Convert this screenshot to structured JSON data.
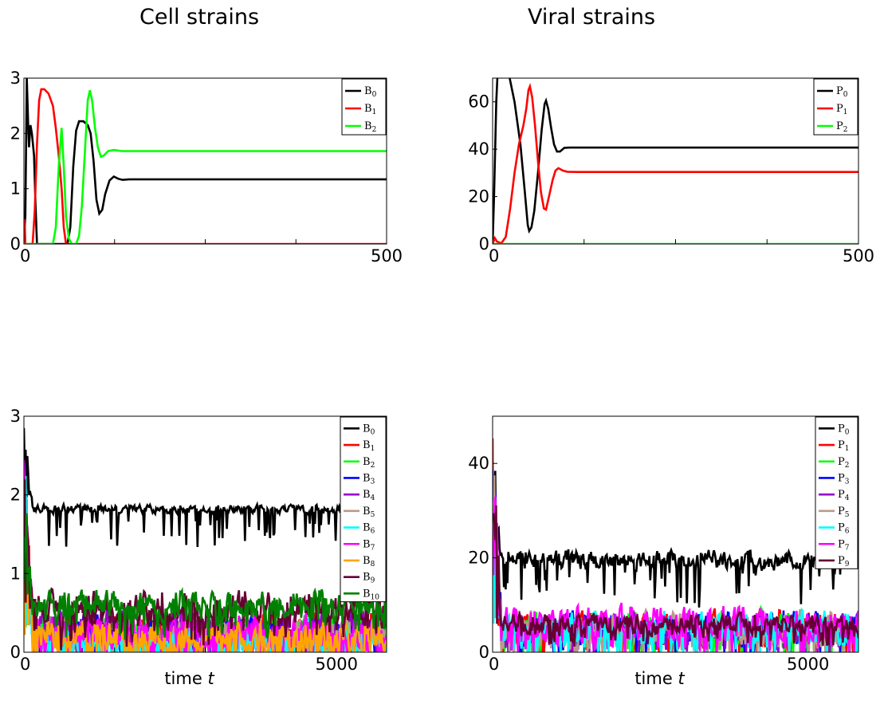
{
  "titles": {
    "left": "Cell strains",
    "right": "Viral strains"
  },
  "chart_data": [
    {
      "id": "cells_short",
      "type": "line",
      "xlim": [
        0,
        500
      ],
      "ylim": [
        0,
        3
      ],
      "xticks": [
        "0",
        "500"
      ],
      "yticks": [
        "0",
        "1",
        "2",
        "3"
      ],
      "xlabel": "",
      "legend_position": "top-right",
      "series": [
        {
          "name": "B",
          "sub": "0",
          "color": "#000000",
          "points": [
            [
              0,
              0
            ],
            [
              2,
              0.5
            ],
            [
              4,
              3
            ],
            [
              6,
              2.1
            ],
            [
              7,
              1.75
            ],
            [
              9,
              2.15
            ],
            [
              11,
              2.0
            ],
            [
              14,
              1.6
            ],
            [
              16,
              0.7
            ],
            [
              18,
              0
            ],
            [
              60,
              0
            ],
            [
              64,
              0.3
            ],
            [
              68,
              1.4
            ],
            [
              72,
              2.05
            ],
            [
              76,
              2.22
            ],
            [
              82,
              2.22
            ],
            [
              88,
              2.15
            ],
            [
              92,
              2.0
            ],
            [
              96,
              1.5
            ],
            [
              100,
              0.8
            ],
            [
              104,
              0.55
            ],
            [
              108,
              0.62
            ],
            [
              112,
              0.9
            ],
            [
              118,
              1.15
            ],
            [
              124,
              1.22
            ],
            [
              130,
              1.18
            ],
            [
              136,
              1.16
            ],
            [
              145,
              1.17
            ],
            [
              170,
              1.17
            ],
            [
              500,
              1.17
            ]
          ]
        },
        {
          "name": "B",
          "sub": "1",
          "color": "#ff0000",
          "points": [
            [
              0,
              0
            ],
            [
              1,
              0.45
            ],
            [
              2,
              0
            ],
            [
              12,
              0
            ],
            [
              15,
              0.6
            ],
            [
              18,
              1.8
            ],
            [
              21,
              2.6
            ],
            [
              24,
              2.8
            ],
            [
              28,
              2.8
            ],
            [
              34,
              2.72
            ],
            [
              40,
              2.5
            ],
            [
              44,
              2.1
            ],
            [
              48,
              1.6
            ],
            [
              52,
              1.0
            ],
            [
              55,
              0.3
            ],
            [
              58,
              0
            ],
            [
              500,
              0
            ]
          ]
        },
        {
          "name": "B",
          "sub": "2",
          "color": "#00ff00",
          "points": [
            [
              0,
              0
            ],
            [
              40,
              0
            ],
            [
              44,
              0.3
            ],
            [
              48,
              1.4
            ],
            [
              52,
              2.1
            ],
            [
              55,
              1.4
            ],
            [
              58,
              0.5
            ],
            [
              62,
              0.1
            ],
            [
              66,
              0
            ],
            [
              72,
              0
            ],
            [
              76,
              0.15
            ],
            [
              80,
              0.7
            ],
            [
              85,
              1.9
            ],
            [
              88,
              2.6
            ],
            [
              91,
              2.78
            ],
            [
              94,
              2.6
            ],
            [
              98,
              2.1
            ],
            [
              102,
              1.75
            ],
            [
              106,
              1.58
            ],
            [
              110,
              1.6
            ],
            [
              116,
              1.68
            ],
            [
              124,
              1.7
            ],
            [
              135,
              1.68
            ],
            [
              150,
              1.68
            ],
            [
              500,
              1.68
            ]
          ]
        }
      ]
    },
    {
      "id": "virus_short",
      "type": "line",
      "xlim": [
        0,
        500
      ],
      "ylim": [
        0,
        70
      ],
      "xticks": [
        "0",
        "500"
      ],
      "yticks": [
        "0",
        "20",
        "40",
        "60"
      ],
      "xlabel": "",
      "legend_position": "top-right",
      "series": [
        {
          "name": "P",
          "sub": "0",
          "color": "#000000",
          "points": [
            [
              0,
              0
            ],
            [
              2,
              20
            ],
            [
              5,
              60
            ],
            [
              8,
              80
            ],
            [
              14,
              78
            ],
            [
              22,
              72
            ],
            [
              30,
              60
            ],
            [
              38,
              42
            ],
            [
              44,
              22
            ],
            [
              48,
              8
            ],
            [
              50,
              5.5
            ],
            [
              53,
              7
            ],
            [
              57,
              14
            ],
            [
              62,
              30
            ],
            [
              67,
              48
            ],
            [
              71,
              59
            ],
            [
              73,
              60.5
            ],
            [
              76,
              57
            ],
            [
              80,
              49
            ],
            [
              84,
              42
            ],
            [
              88,
              39
            ],
            [
              92,
              39
            ],
            [
              98,
              40.6
            ],
            [
              105,
              40.7
            ],
            [
              120,
              40.7
            ],
            [
              500,
              40.7
            ]
          ]
        },
        {
          "name": "P",
          "sub": "1",
          "color": "#ff0000",
          "points": [
            [
              0,
              0
            ],
            [
              3,
              2.5
            ],
            [
              6,
              1
            ],
            [
              12,
              0.3
            ],
            [
              18,
              3
            ],
            [
              24,
              15
            ],
            [
              30,
              30
            ],
            [
              36,
              42
            ],
            [
              42,
              50
            ],
            [
              46,
              57
            ],
            [
              49,
              65
            ],
            [
              51,
              66.5
            ],
            [
              54,
              62
            ],
            [
              58,
              50
            ],
            [
              62,
              35
            ],
            [
              66,
              22
            ],
            [
              70,
              15
            ],
            [
              73,
              14.5
            ],
            [
              77,
              20
            ],
            [
              82,
              27
            ],
            [
              86,
              31
            ],
            [
              90,
              32
            ],
            [
              96,
              31
            ],
            [
              102,
              30.5
            ],
            [
              115,
              30.4
            ],
            [
              500,
              30.4
            ]
          ]
        },
        {
          "name": "P",
          "sub": "2",
          "color": "#00ff00",
          "points": [
            [
              0,
              0
            ],
            [
              500,
              0
            ]
          ]
        }
      ]
    },
    {
      "id": "cells_long",
      "type": "line",
      "xlim": [
        0,
        5800
      ],
      "ylim": [
        0,
        3
      ],
      "xticks": [
        "0",
        "5000"
      ],
      "yticks": [
        "0",
        "1",
        "2",
        "3"
      ],
      "xlabel": "time t",
      "legend_position": "top-right",
      "series": [
        {
          "name": "B",
          "sub": "0",
          "color": "#000000",
          "base": 1.82,
          "amp": 0.08,
          "dips": 0.35
        },
        {
          "name": "B",
          "sub": "1",
          "color": "#ff0000",
          "base": 0.25,
          "amp": 0.35
        },
        {
          "name": "B",
          "sub": "2",
          "color": "#00ff00",
          "base": 0.3,
          "amp": 0.3
        },
        {
          "name": "B",
          "sub": "3",
          "color": "#0000ff",
          "base": 0.25,
          "amp": 0.3
        },
        {
          "name": "B",
          "sub": "4",
          "color": "#9900cc",
          "base": 0.3,
          "amp": 0.35
        },
        {
          "name": "B",
          "sub": "5",
          "color": "#bb9988",
          "base": 0.2,
          "amp": 0.3
        },
        {
          "name": "B",
          "sub": "6",
          "color": "#00ffff",
          "base": 0.15,
          "amp": 0.3
        },
        {
          "name": "B",
          "sub": "7",
          "color": "#ff00ff",
          "base": 0.25,
          "amp": 0.35
        },
        {
          "name": "B",
          "sub": "8",
          "color": "#ffa500",
          "base": 0.2,
          "amp": 0.3
        },
        {
          "name": "B",
          "sub": "9",
          "color": "#660033",
          "base": 0.55,
          "amp": 0.3
        },
        {
          "name": "B",
          "sub": "10",
          "color": "#008000",
          "base": 0.6,
          "amp": 0.25
        }
      ]
    },
    {
      "id": "virus_long",
      "type": "line",
      "xlim": [
        0,
        5800
      ],
      "ylim": [
        0,
        50
      ],
      "xticks": [
        "0",
        "5000"
      ],
      "yticks": [
        "0",
        "20",
        "40"
      ],
      "xlabel": "time t",
      "legend_position": "top-right",
      "series": [
        {
          "name": "P",
          "sub": "0",
          "color": "#000000",
          "base": 19.5,
          "amp": 3.0,
          "dips": 6
        },
        {
          "name": "P",
          "sub": "1",
          "color": "#ff0000",
          "base": 5,
          "amp": 5
        },
        {
          "name": "P",
          "sub": "2",
          "color": "#00ff00",
          "base": 5,
          "amp": 5
        },
        {
          "name": "P",
          "sub": "3",
          "color": "#0000ff",
          "base": 5,
          "amp": 5
        },
        {
          "name": "P",
          "sub": "4",
          "color": "#9900cc",
          "base": 5,
          "amp": 4
        },
        {
          "name": "P",
          "sub": "5",
          "color": "#bb9988",
          "base": 5,
          "amp": 5
        },
        {
          "name": "P",
          "sub": "6",
          "color": "#00ffff",
          "base": 5,
          "amp": 5
        },
        {
          "name": "P",
          "sub": "7",
          "color": "#ff00ff",
          "base": 6,
          "amp": 5
        },
        {
          "name": "P",
          "sub": "9",
          "color": "#660033",
          "base": 6,
          "amp": 3
        }
      ]
    }
  ]
}
